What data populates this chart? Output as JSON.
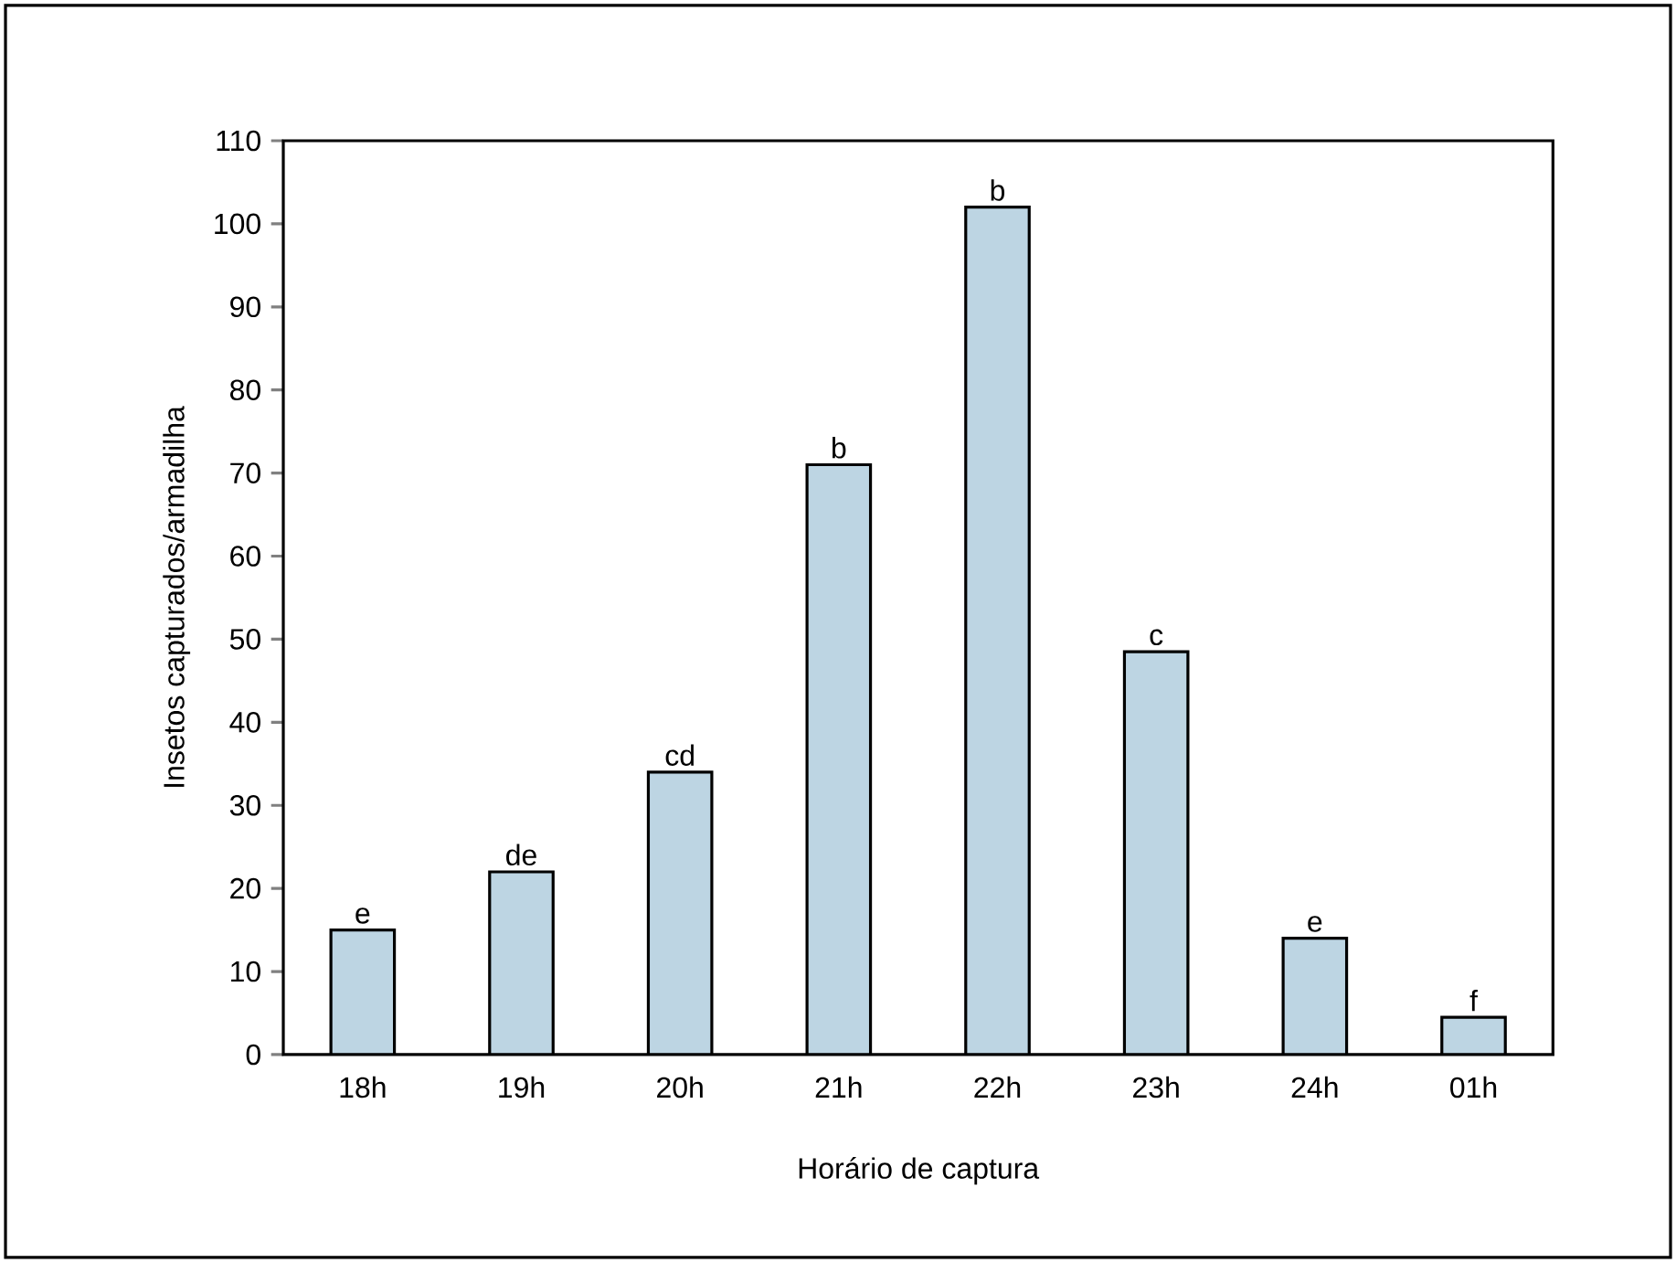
{
  "chart_data": {
    "type": "bar",
    "xlabel": "Horário de captura",
    "ylabel": "Insetos capturados/armadilha",
    "categories": [
      "18h",
      "19h",
      "20h",
      "21h",
      "22h",
      "23h",
      "24h",
      "01h"
    ],
    "values": [
      15,
      22,
      34,
      71,
      102,
      48.5,
      14,
      4.5
    ],
    "color": "#bdd5e3",
    "ylim": [
      0,
      110
    ],
    "yticks": [
      0,
      10,
      20,
      30,
      40,
      50,
      60,
      70,
      80,
      90,
      100,
      110
    ],
    "annotations": [
      {
        "text": "e",
        "x": "18h",
        "y": 15
      },
      {
        "text": "de",
        "x": "19h",
        "y": 22
      },
      {
        "text": "cd",
        "x": "20h",
        "y": 34
      },
      {
        "text": "b",
        "x": "21h",
        "y": 71
      },
      {
        "text": "b",
        "x": "22h",
        "y": 102
      },
      {
        "text": "c",
        "x": "23h",
        "y": 48.5
      },
      {
        "text": "e",
        "x": "24h",
        "y": 14
      },
      {
        "text": "f",
        "x": "01h",
        "y": 4.5
      }
    ]
  }
}
